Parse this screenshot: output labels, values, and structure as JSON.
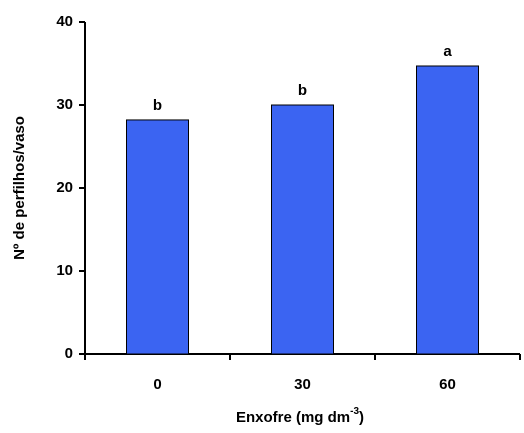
{
  "chart_data": {
    "type": "bar",
    "x_label": {
      "text": "Enxofre (mg dm",
      "superscript": "-3",
      "suffix": ")"
    },
    "y_label": "Nº de perfilhos/vaso",
    "categories": [
      "0",
      "30",
      "60"
    ],
    "values": [
      28.2,
      30,
      34.7
    ],
    "annotations": [
      "b",
      "b",
      "a"
    ],
    "color": "#3b64f2",
    "ylim": [
      0,
      40
    ],
    "yticks": [
      0,
      10,
      20,
      30,
      40
    ],
    "grid": false
  }
}
